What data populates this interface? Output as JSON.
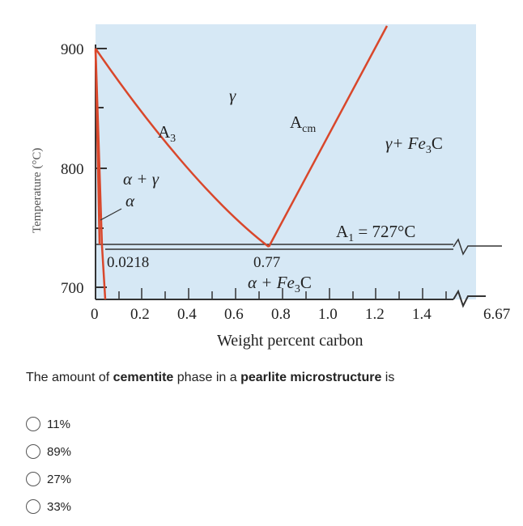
{
  "diagram": {
    "y_axis_label": "Temperature (°C)",
    "x_axis_label": "Weight percent carbon",
    "y_ticks": [
      "900",
      "800",
      "700"
    ],
    "x_ticks": [
      "0",
      "0.2",
      "0.4",
      "0.6",
      "0.8",
      "1.0",
      "1.2",
      "1.4"
    ],
    "x_break_tick": "6.67",
    "labels": {
      "gamma": "γ",
      "a3": "A",
      "a3_sub": "3",
      "acm": "A",
      "acm_sub": "cm",
      "gamma_fe3c_a": "γ+ Fe",
      "gamma_fe3c_sub": "3",
      "gamma_fe3c_b": "C",
      "alpha_gamma": "α + γ",
      "alpha": "α",
      "a1_a": "A",
      "a1_sub": "1",
      "a1_b": " = 727°C",
      "c_0218": "0.0218",
      "c_077": "0.77",
      "alpha_fe3c_a": "α + Fe",
      "alpha_fe3c_sub": "3",
      "alpha_fe3c_b": "C"
    },
    "colors": {
      "fill": "#d6e8f5",
      "boundary": "#d9472b",
      "axis": "#333333"
    }
  },
  "question": {
    "text_1": "The amount of ",
    "bold_1": "cementite",
    "text_2": " phase in a ",
    "bold_2": "pearlite microstructure",
    "text_3": " is"
  },
  "options": [
    "11%",
    "89%",
    "27%",
    "33%"
  ]
}
